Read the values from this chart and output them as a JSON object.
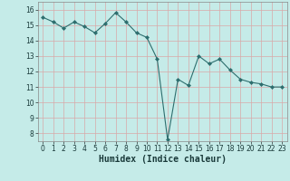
{
  "x": [
    0,
    1,
    2,
    3,
    4,
    5,
    6,
    7,
    8,
    9,
    10,
    11,
    12,
    13,
    14,
    15,
    16,
    17,
    18,
    19,
    20,
    21,
    22,
    23
  ],
  "y": [
    15.5,
    15.2,
    14.8,
    15.2,
    14.9,
    14.5,
    15.1,
    15.8,
    15.2,
    14.5,
    14.2,
    12.8,
    7.6,
    11.5,
    11.1,
    13.0,
    12.5,
    12.8,
    12.1,
    11.5,
    11.3,
    11.2,
    11.0,
    11.0
  ],
  "line_color": "#2d6e6e",
  "marker": "D",
  "marker_size": 2.0,
  "linewidth": 0.8,
  "xlabel": "Humidex (Indice chaleur)",
  "xlim": [
    -0.5,
    23.5
  ],
  "ylim": [
    7.5,
    16.5
  ],
  "yticks": [
    8,
    9,
    10,
    11,
    12,
    13,
    14,
    15,
    16
  ],
  "xticks": [
    0,
    1,
    2,
    3,
    4,
    5,
    6,
    7,
    8,
    9,
    10,
    11,
    12,
    13,
    14,
    15,
    16,
    17,
    18,
    19,
    20,
    21,
    22,
    23
  ],
  "background_color": "#c5ebe8",
  "grid_color": "#d9a8a8",
  "tick_fontsize": 5.5,
  "xlabel_fontsize": 7.0
}
